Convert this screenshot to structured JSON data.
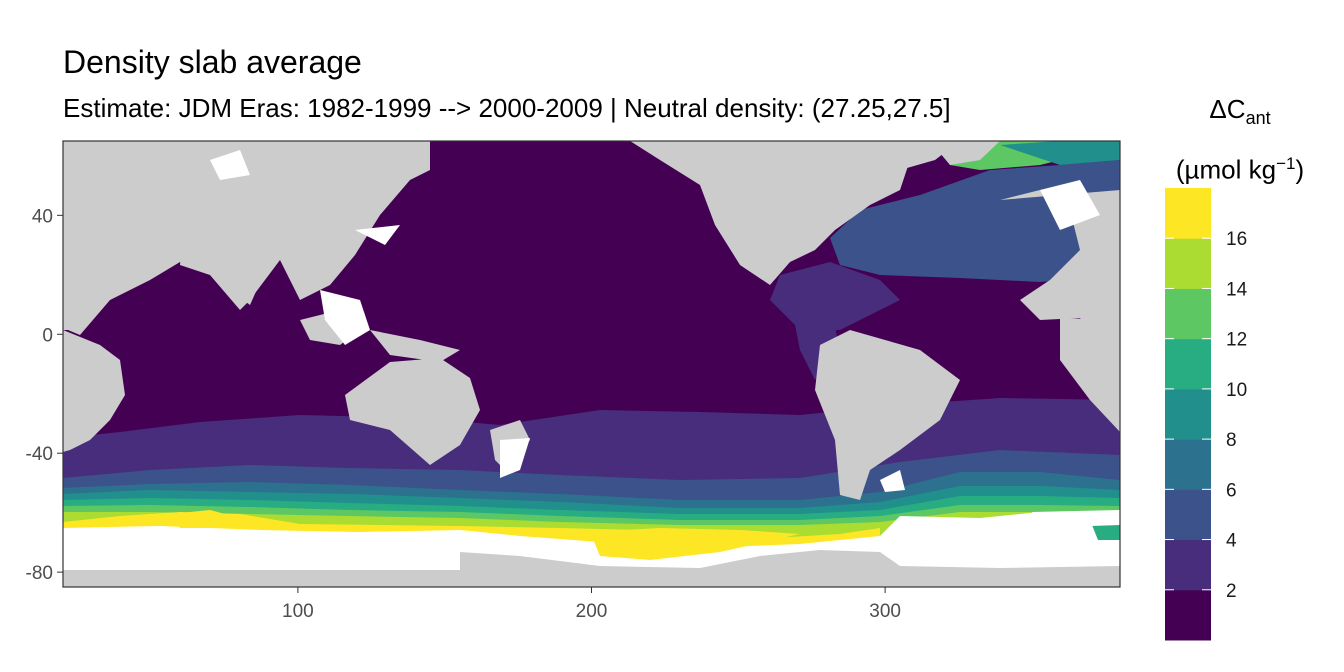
{
  "title": "Density slab average",
  "subtitle": "Estimate: JDM Eras: 1982-1999 --> 2000-2009 | Neutral density: (27.25,27.5]",
  "legend": {
    "symbol": "ΔC",
    "subscript": "ant",
    "unit_text": "(µmol kg",
    "unit_exp": "−1",
    "unit_close": ")",
    "labels": [
      "2",
      "4",
      "6",
      "8",
      "10",
      "12",
      "14",
      "16"
    ],
    "colors": [
      "#440154",
      "#472D7B",
      "#3B528B",
      "#2C728E",
      "#21908C",
      "#27AD81",
      "#5DC863",
      "#AADC32",
      "#FDE725"
    ]
  },
  "axes": {
    "x_ticks": [
      100,
      200,
      300
    ],
    "y_ticks": [
      40,
      0,
      -40,
      -80
    ],
    "x_range": [
      20,
      380
    ],
    "y_range": [
      -85,
      65
    ]
  },
  "colors": {
    "land": "#cccccc",
    "no_data": "#ffffff",
    "frame": "#333333",
    "tick_label": "#4d4d4d"
  }
}
